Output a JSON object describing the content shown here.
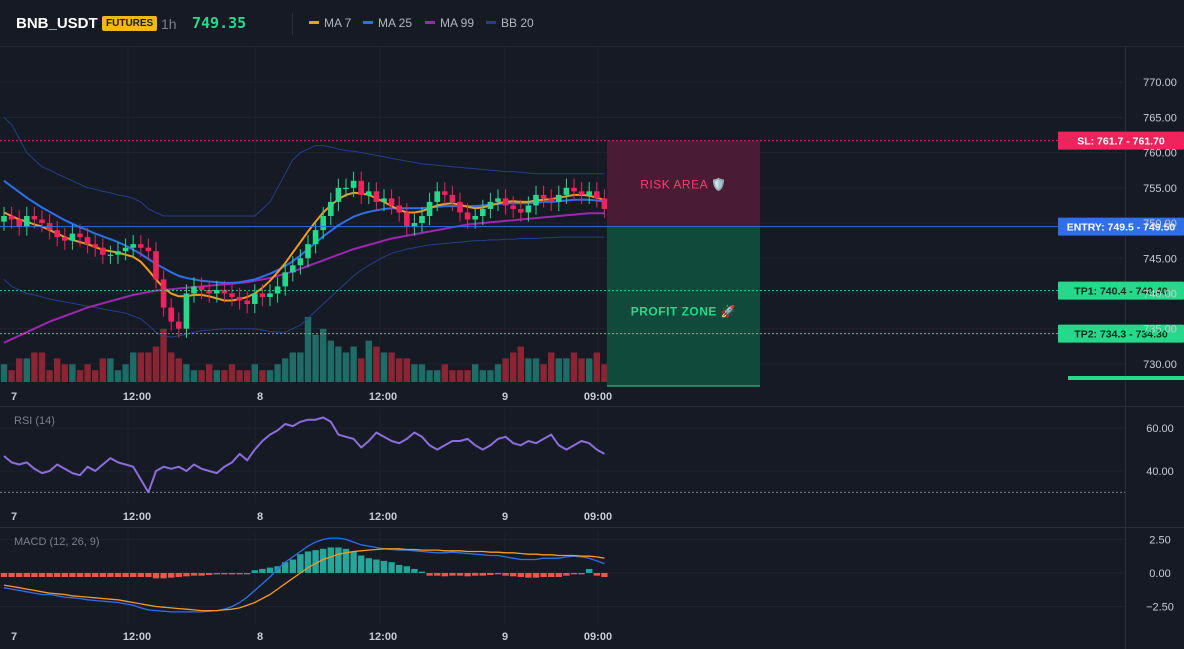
{
  "header": {
    "symbol": "BNB_USDT",
    "badge": "FUTURES",
    "timeframe": "1h",
    "last_price": "749.35",
    "legend": [
      {
        "label": "MA 7",
        "color": "#f59a23"
      },
      {
        "label": "MA 25",
        "color": "#2f6fe8"
      },
      {
        "label": "MA 99",
        "color": "#9c27b0"
      },
      {
        "label": "BB 20",
        "color": "#253f8a"
      }
    ]
  },
  "colors": {
    "up": "#26d98a",
    "down": "#f0245c",
    "vol_up": "#1f6b66",
    "vol_down": "#8b2433",
    "entry": "#2f6fe8",
    "sl": "#f0245c",
    "tp": "#26d98a",
    "rsi": "#8d6ddb",
    "macd": "#2f6fe8",
    "signal": "#f59a23"
  },
  "time_labels": [
    "7",
    "12:00",
    "8",
    "12:00",
    "9",
    "09:00"
  ],
  "zones": {
    "risk_label": "RISK AREA 🛡️",
    "profit_label": "PROFIT ZONE 🚀"
  },
  "chart_data": [
    {
      "type": "candlestick",
      "title": "BNB_USDT 1h",
      "y_ticks": [
        770,
        765,
        760,
        755,
        750,
        745,
        740,
        735,
        730
      ],
      "y_tick_labels": [
        "770.00",
        "765.00",
        "760.00",
        "755.00",
        "750.00",
        "745.00",
        "740.00",
        "735.00",
        "730.00"
      ],
      "ylim": [
        727,
        775
      ],
      "price_levels": [
        {
          "name": "SL",
          "value": 761.7,
          "label": "SL: 761.7",
          "price_label": "761.70"
        },
        {
          "name": "ENTRY",
          "value": 749.5,
          "label": "ENTRY: 749.5",
          "price_label": "749.50"
        },
        {
          "name": "TP1",
          "value": 740.4,
          "label": "TP1: 740.4",
          "price_label": "740.40"
        },
        {
          "name": "TP2",
          "value": 734.3,
          "label": "TP2: 734.3",
          "price_label": "734.30"
        }
      ],
      "close": [
        751,
        750.5,
        749.5,
        751,
        750.5,
        750,
        749,
        748,
        747.5,
        748.5,
        748,
        747,
        746.5,
        745.5,
        745.5,
        746,
        746.5,
        747,
        746.5,
        746,
        742,
        738,
        736,
        735,
        740,
        741,
        740.5,
        740,
        740.5,
        740,
        739.5,
        739,
        738.5,
        740,
        739.5,
        740,
        741,
        743,
        744,
        745,
        747,
        749,
        751,
        753,
        755,
        755,
        756,
        754,
        754.5,
        753,
        753.5,
        752.5,
        751.5,
        749.5,
        750,
        751,
        753,
        754.5,
        754,
        753,
        751.5,
        750.5,
        751,
        752,
        753,
        753.5,
        752.5,
        752,
        751.5,
        752.5,
        754,
        753.5,
        753,
        754,
        755,
        754.5,
        754,
        754.5,
        753.5,
        752
      ],
      "ma7": [
        751.5,
        751,
        750.5,
        750.2,
        749.8,
        749.5,
        749,
        748.5,
        748,
        747.6,
        747.3,
        747,
        746.6,
        746.2,
        746,
        745.8,
        745.5,
        745.2,
        744.5,
        743.3,
        742,
        740.8,
        740,
        739.6,
        739.6,
        739.8,
        739.8,
        739.6,
        739.3,
        739,
        739,
        739.2,
        739.5,
        740,
        740.8,
        741.8,
        743,
        744.3,
        745.8,
        747.3,
        748.8,
        750.2,
        751.5,
        752.5,
        753.4,
        754,
        754.3,
        754.2,
        754,
        753.5,
        753,
        752.4,
        751.9,
        751.5,
        751.5,
        751.7,
        752.1,
        752.5,
        752.7,
        752.8,
        752.6,
        752.3,
        752.1,
        752.2,
        752.5,
        752.8,
        753,
        753.1,
        753,
        753,
        753.2,
        753.3,
        753.4,
        753.6,
        753.8,
        754,
        754,
        753.9,
        753.6,
        753.3
      ],
      "ma25": [
        756,
        755.2,
        754.4,
        753.6,
        752.9,
        752.2,
        751.6,
        751,
        750.4,
        749.9,
        749.4,
        749,
        748.5,
        748.1,
        747.7,
        747.3,
        746.8,
        746.2,
        745.6,
        744.9,
        744.2,
        743.6,
        743,
        742.5,
        742.2,
        742,
        741.8,
        741.7,
        741.6,
        741.5,
        741.5,
        741.6,
        741.8,
        742,
        742.4,
        742.8,
        743.3,
        743.9,
        744.6,
        745.4,
        746.3,
        747.2,
        748.1,
        748.9,
        749.7,
        750.3,
        750.9,
        751.3,
        751.6,
        751.8,
        752,
        752.1,
        752.1,
        752.1,
        752.1,
        752.1,
        752.2,
        752.3,
        752.4,
        752.4,
        752.4,
        752.4,
        752.4,
        752.5,
        752.6,
        752.7,
        752.8,
        752.8,
        752.8,
        752.8,
        752.9,
        753,
        753,
        753.1,
        753.2,
        753.3,
        753.3,
        753.3,
        753.2,
        753.1
      ],
      "ma99": [
        733,
        733.5,
        734,
        734.5,
        735,
        735.5,
        736,
        736.4,
        736.8,
        737.2,
        737.6,
        738,
        738.3,
        738.6,
        738.9,
        739.2,
        739.5,
        739.8,
        740,
        740.2,
        740.4,
        740.5,
        740.6,
        740.7,
        740.8,
        740.9,
        741,
        741.1,
        741.2,
        741.3,
        741.4,
        741.5,
        741.6,
        741.8,
        742,
        742.2,
        742.5,
        742.8,
        743.1,
        743.5,
        743.9,
        744.3,
        744.7,
        745.1,
        745.5,
        745.9,
        746.3,
        746.6,
        746.9,
        747.2,
        747.5,
        747.8,
        748,
        748.2,
        748.4,
        748.6,
        748.8,
        749,
        749.2,
        749.4,
        749.6,
        749.8,
        749.9,
        750,
        750.1,
        750.2,
        750.3,
        750.4,
        750.5,
        750.6,
        750.7,
        750.8,
        750.9,
        751,
        751.1,
        751.2,
        751.3,
        751.4,
        751.4,
        751.4
      ],
      "bb_upper": [
        765,
        764,
        762,
        760,
        759,
        758,
        757.5,
        757,
        756.5,
        756,
        755.5,
        755,
        754.8,
        754.5,
        754.3,
        754,
        753.8,
        753.5,
        753,
        752,
        751.5,
        751,
        751,
        751,
        751,
        751,
        751,
        751,
        751,
        751,
        751,
        751,
        751,
        751,
        752,
        753,
        755,
        757,
        759,
        760,
        760.5,
        761,
        761,
        760.8,
        760.5,
        760.3,
        760.2,
        760,
        759.8,
        759.6,
        759.4,
        759.2,
        759,
        758.8,
        758.6,
        758.4,
        758.3,
        758.2,
        758.1,
        758,
        757.9,
        757.8,
        757.7,
        757.6,
        757.5,
        757.4,
        757.3,
        757.3,
        757.2,
        757.1,
        757,
        757,
        757,
        757,
        757,
        757,
        757,
        757,
        757,
        757
      ],
      "bb_lower": [
        742,
        741,
        740.5,
        740,
        739.8,
        739.5,
        739.2,
        739,
        738.8,
        738.6,
        738.4,
        738.2,
        738,
        737.8,
        737.6,
        737.4,
        737.2,
        736.8,
        736.4,
        735.5,
        734.5,
        734,
        733.8,
        734,
        734.2,
        734.5,
        734.7,
        734.8,
        734.9,
        735,
        735,
        735,
        735,
        735,
        734.8,
        734.6,
        734.5,
        734.5,
        735,
        735.5,
        736.5,
        737.5,
        738.5,
        739.5,
        740.5,
        741.5,
        742.5,
        743.3,
        744,
        744.6,
        745.2,
        745.7,
        746,
        746.3,
        746.5,
        746.7,
        746.9,
        747,
        747.1,
        747.2,
        747.3,
        747.4,
        747.5,
        747.5,
        747.6,
        747.6,
        747.7,
        747.7,
        747.8,
        747.8,
        747.8,
        747.9,
        747.9,
        748,
        748,
        748,
        748,
        748,
        748,
        748
      ],
      "volume": [
        3,
        2,
        4,
        4,
        5,
        5,
        2,
        4,
        3,
        3,
        2,
        3,
        2,
        4,
        4,
        2,
        3,
        5,
        5,
        5,
        6,
        9,
        5,
        4,
        3,
        2,
        2,
        3,
        2,
        2,
        3,
        2,
        2,
        3,
        2,
        2,
        3,
        4,
        5,
        5,
        11,
        8,
        9,
        7,
        6,
        5,
        6,
        4,
        7,
        6,
        5,
        5,
        4,
        4,
        3,
        3,
        2,
        2,
        3,
        2,
        2,
        2,
        3,
        2,
        2,
        3,
        4,
        5,
        6,
        4,
        4,
        3,
        5,
        4,
        4,
        5,
        4,
        4,
        5,
        3
      ]
    },
    {
      "type": "line",
      "title": "RSI (14)",
      "y_ticks": [
        60,
        40
      ],
      "y_tick_labels": [
        "60.00",
        "40.00"
      ],
      "ylim": [
        25,
        69
      ],
      "reference_line": 30,
      "values": [
        47,
        44,
        43,
        44,
        41,
        39,
        40,
        43,
        41,
        39,
        38,
        42,
        40,
        43,
        46,
        44,
        43,
        42,
        36,
        30,
        40,
        42,
        41,
        42,
        40,
        43,
        41,
        40,
        39,
        42,
        44,
        48,
        45,
        50,
        54,
        57,
        59,
        62,
        61,
        63,
        64,
        64,
        65,
        63,
        57,
        56,
        55,
        51,
        54,
        58,
        56,
        54,
        53,
        55,
        58,
        56,
        52,
        50,
        52,
        54,
        54,
        55,
        52,
        50,
        52,
        55,
        56,
        53,
        52,
        54,
        53,
        55,
        57,
        52,
        50,
        52,
        54,
        53,
        50,
        48
      ]
    },
    {
      "type": "bar+line",
      "title": "MACD (12, 26, 9)",
      "y_ticks": [
        2.5,
        0,
        -2.5
      ],
      "y_tick_labels": [
        "2.50",
        "0.00",
        "−2.50"
      ],
      "ylim": [
        -3.8,
        3.2
      ],
      "histogram": [
        -0.3,
        -0.3,
        -0.3,
        -0.3,
        -0.3,
        -0.3,
        -0.3,
        -0.3,
        -0.3,
        -0.3,
        -0.3,
        -0.3,
        -0.3,
        -0.3,
        -0.3,
        -0.3,
        -0.3,
        -0.3,
        -0.3,
        -0.3,
        -0.4,
        -0.4,
        -0.35,
        -0.3,
        -0.25,
        -0.2,
        -0.2,
        -0.15,
        -0.1,
        -0.1,
        -0.1,
        -0.1,
        -0.1,
        0.2,
        0.3,
        0.4,
        0.5,
        0.8,
        1.0,
        1.4,
        1.6,
        1.7,
        1.8,
        1.9,
        1.9,
        1.8,
        1.6,
        1.3,
        1.1,
        1.0,
        0.9,
        0.8,
        0.6,
        0.5,
        0.3,
        0.1,
        -0.2,
        -0.2,
        -0.25,
        -0.2,
        -0.2,
        -0.25,
        -0.2,
        -0.2,
        -0.15,
        -0.1,
        -0.2,
        -0.25,
        -0.3,
        -0.35,
        -0.35,
        -0.3,
        -0.3,
        -0.3,
        -0.2,
        -0.1,
        -0.1,
        0.3,
        -0.2,
        -0.3
      ],
      "macd": [
        -1.1,
        -1.2,
        -1.3,
        -1.4,
        -1.5,
        -1.6,
        -1.6,
        -1.7,
        -1.8,
        -1.85,
        -1.9,
        -2,
        -2.05,
        -2.1,
        -2.15,
        -2.2,
        -2.3,
        -2.4,
        -2.6,
        -2.75,
        -2.8,
        -2.85,
        -2.9,
        -2.9,
        -2.9,
        -2.9,
        -2.9,
        -2.85,
        -2.8,
        -2.7,
        -2.5,
        -2.2,
        -1.8,
        -1.3,
        -0.8,
        -0.3,
        0.3,
        0.8,
        1.2,
        1.6,
        2,
        2.3,
        2.5,
        2.6,
        2.6,
        2.5,
        2.3,
        2.1,
        2,
        1.9,
        1.8,
        1.75,
        1.7,
        1.7,
        1.65,
        1.6,
        1.55,
        1.5,
        1.5,
        1.55,
        1.5,
        1.45,
        1.4,
        1.35,
        1.3,
        1.3,
        1.2,
        1.1,
        1,
        1,
        1,
        1.1,
        1.1,
        1.1,
        1.2,
        1.25,
        1.2,
        1.1,
        0.9,
        0.7
      ],
      "signal": [
        -0.9,
        -1,
        -1.1,
        -1.2,
        -1.3,
        -1.4,
        -1.5,
        -1.55,
        -1.6,
        -1.7,
        -1.75,
        -1.8,
        -1.85,
        -1.9,
        -1.95,
        -2,
        -2.1,
        -2.2,
        -2.3,
        -2.4,
        -2.5,
        -2.55,
        -2.6,
        -2.65,
        -2.7,
        -2.75,
        -2.8,
        -2.8,
        -2.8,
        -2.75,
        -2.7,
        -2.6,
        -2.4,
        -2.2,
        -1.9,
        -1.6,
        -1.2,
        -0.8,
        -0.4,
        0,
        0.4,
        0.7,
        1,
        1.2,
        1.4,
        1.5,
        1.6,
        1.65,
        1.7,
        1.75,
        1.8,
        1.8,
        1.8,
        1.75,
        1.75,
        1.7,
        1.7,
        1.7,
        1.65,
        1.65,
        1.65,
        1.6,
        1.6,
        1.6,
        1.55,
        1.55,
        1.5,
        1.5,
        1.45,
        1.4,
        1.4,
        1.35,
        1.35,
        1.3,
        1.3,
        1.3,
        1.25,
        1.25,
        1.2,
        1.1
      ]
    }
  ]
}
